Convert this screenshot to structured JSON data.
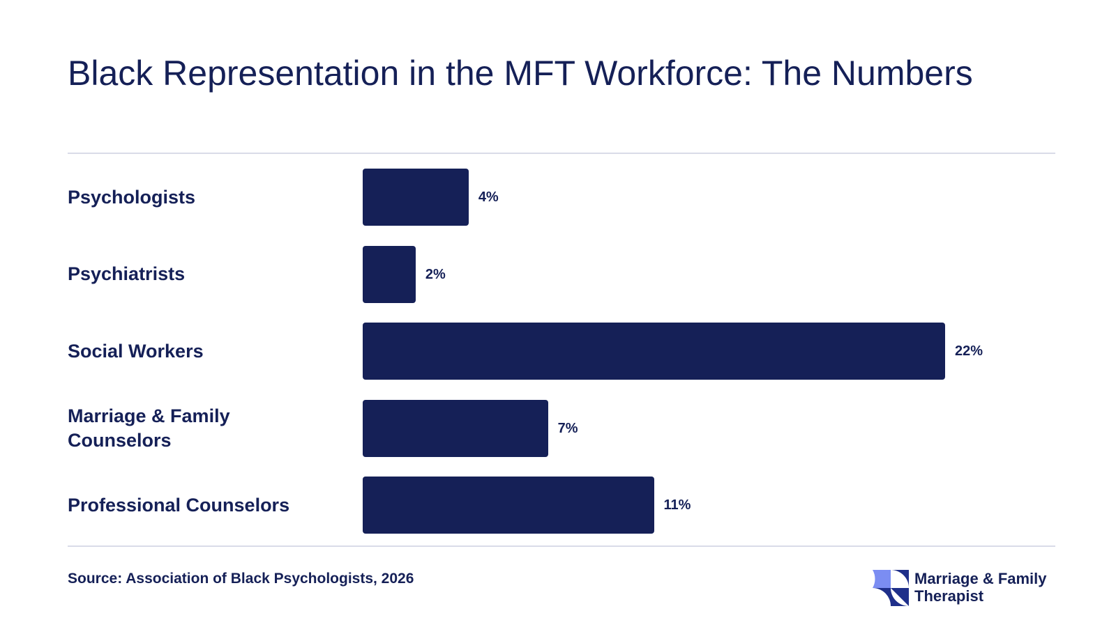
{
  "header": {
    "title": "Black Representation in the MFT Workforce: The Numbers"
  },
  "colors": {
    "bar": "#152057",
    "text": "#152057",
    "rule": "#d9dbe8",
    "logo_light": "#7b8df2",
    "logo_dark": "#1f2f8a"
  },
  "chart_data": {
    "type": "bar",
    "orientation": "horizontal",
    "categories": [
      "Psychologists",
      "Psychiatrists",
      "Social Workers",
      "Marriage & Family Counselors",
      "Professional Counselors"
    ],
    "values": [
      4,
      2,
      22,
      7,
      11
    ],
    "value_labels": [
      "4%",
      "2%",
      "22%",
      "7%",
      "11%"
    ],
    "title": "Black Representation in the MFT Workforce: The Numbers",
    "unit": "%",
    "xlim": [
      0,
      22
    ],
    "grid": false,
    "legend": "none"
  },
  "footer": {
    "source": "Source: Association of Black Psychologists, 2026",
    "brand_name": "Marriage & Family Therapist",
    "brand_icon": "pinwheel-logo-icon"
  }
}
